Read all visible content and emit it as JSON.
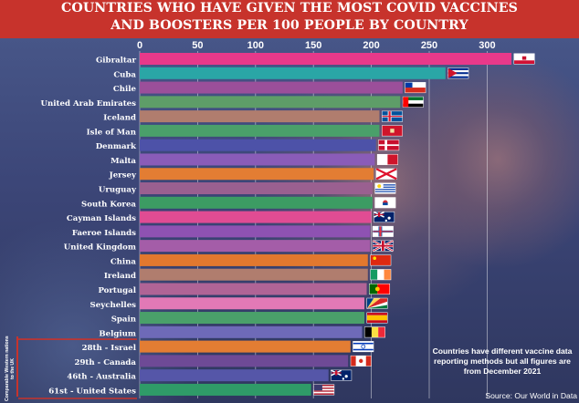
{
  "title": {
    "line1": "COUNTRIES WHO HAVE GIVEN THE MOST COVID VACCINES",
    "line2": "AND BOOSTERS PER 100 PEOPLE BY COUNTRY"
  },
  "side_label": "Comparable Western nations to the UK",
  "note": "Countries have different vaccine data reporting methods but all figures are from December 2021",
  "source": "Source: Our World in Data",
  "chart_data": {
    "type": "bar",
    "orientation": "horizontal",
    "xlim": [
      0,
      325
    ],
    "ticks": [
      0,
      50,
      100,
      150,
      200,
      250,
      300
    ],
    "tick_labels": [
      "0",
      "50",
      "100",
      "150",
      "200",
      "250",
      "300"
    ],
    "grid": true,
    "categories": [
      "Gibraltar",
      "Cuba",
      "Chile",
      "United Arab Emirates",
      "Iceland",
      "Isle of Man",
      "Denmark",
      "Malta",
      "Jersey",
      "Uruguay",
      "South Korea",
      "Cayman Islands",
      "Faeroe Islands",
      "United Kingdom",
      "China",
      "Ireland",
      "Portugal",
      "Seychelles",
      "Spain",
      "Belgium",
      "28th - Israel",
      "29th - Canada",
      "46th - Australia",
      "61st - United States"
    ],
    "values": [
      321,
      264,
      227,
      225,
      207,
      207,
      204,
      203,
      202,
      201,
      201,
      200,
      199,
      199,
      197,
      197,
      196,
      194,
      194,
      192,
      182,
      180,
      163,
      148
    ],
    "colors": [
      "#e8398a",
      "#2aa6a6",
      "#9b4f9a",
      "#5e9d68",
      "#b07d6e",
      "#4aa06a",
      "#4d52a8",
      "#8a5cb8",
      "#e37d33",
      "#9a6090",
      "#3c9c63",
      "#e04c93",
      "#8e52b2",
      "#a45da8",
      "#e2782e",
      "#b07d6e",
      "#b06496",
      "#e279b6",
      "#4aa06a",
      "#6e6ab8",
      "#e37d33",
      "#6e4a96",
      "#5556a8",
      "#2f9b68"
    ],
    "flags": [
      "gibraltar-flag-icon",
      "cuba-flag-icon",
      "chile-flag-icon",
      "uae-flag-icon",
      "iceland-flag-icon",
      "isle-of-man-flag-icon",
      "denmark-flag-icon",
      "malta-flag-icon",
      "jersey-flag-icon",
      "uruguay-flag-icon",
      "south-korea-flag-icon",
      "cayman-islands-flag-icon",
      "faeroe-islands-flag-icon",
      "united-kingdom-flag-icon",
      "china-flag-icon",
      "ireland-flag-icon",
      "portugal-flag-icon",
      "seychelles-flag-icon",
      "spain-flag-icon",
      "belgium-flag-icon",
      "israel-flag-icon",
      "canada-flag-icon",
      "australia-flag-icon",
      "united-states-flag-icon"
    ]
  }
}
